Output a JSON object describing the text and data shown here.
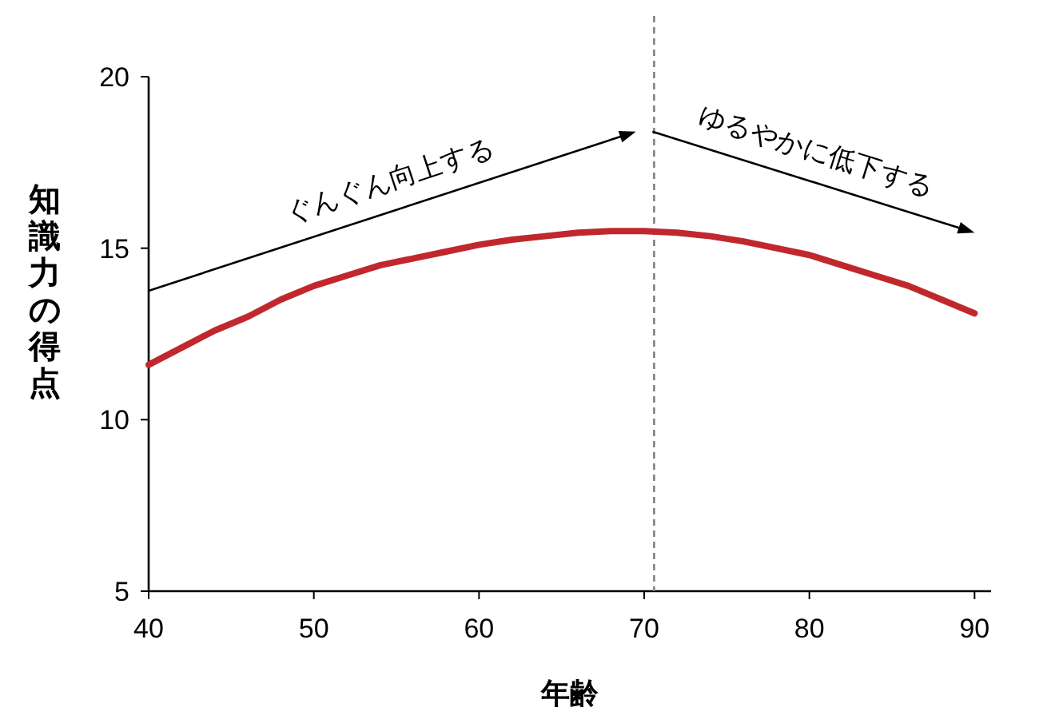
{
  "chart_data": {
    "type": "line",
    "xlabel": "年齢",
    "ylabel": "知識力の得点",
    "x": [
      40,
      42,
      44,
      46,
      48,
      50,
      52,
      54,
      56,
      58,
      60,
      62,
      64,
      66,
      68,
      70,
      72,
      74,
      76,
      78,
      80,
      82,
      84,
      86,
      88,
      90
    ],
    "series": [
      {
        "color": "#c0282d",
        "values": [
          11.6,
          12.1,
          12.6,
          13.0,
          13.5,
          13.9,
          14.2,
          14.5,
          14.7,
          14.9,
          15.1,
          15.25,
          15.35,
          15.45,
          15.5,
          15.5,
          15.45,
          15.35,
          15.2,
          15.0,
          14.8,
          14.5,
          14.2,
          13.9,
          13.5,
          13.1
        ]
      }
    ],
    "xlim": [
      40,
      91
    ],
    "ylim": [
      5,
      20
    ],
    "xticks": [
      40,
      50,
      60,
      70,
      80,
      90
    ],
    "yticks": [
      5,
      10,
      15,
      20
    ],
    "ref_lines": [
      {
        "axis": "x",
        "value": 70.6,
        "color": "#808080",
        "line_style": "dashed"
      }
    ],
    "annotations": [
      "ぐんぐん向上する",
      "ゆるやかに低下する"
    ],
    "grid": false,
    "marker": "none",
    "line_style": "solid"
  }
}
